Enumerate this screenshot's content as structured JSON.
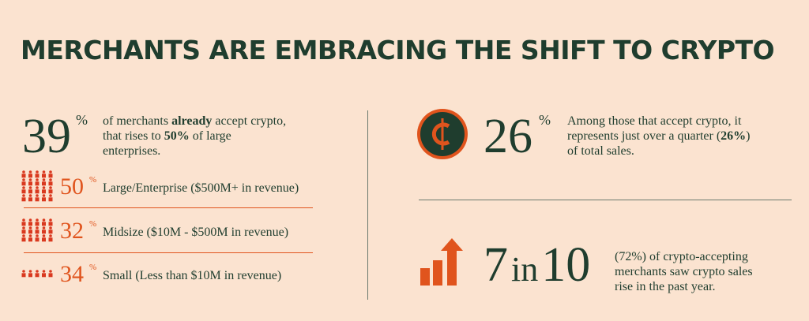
{
  "title": "MERCHANTS ARE EMBRACING THE SHIFT TO CRYPTO",
  "adoption": {
    "number": "39",
    "unit": "%",
    "text": [
      "of merchants ",
      "already",
      " accept crypto, that rises to ",
      "50%",
      " of large enterprises."
    ]
  },
  "segments": [
    {
      "number": "50",
      "unit": "%",
      "label": "Large/Enterprise ($500M+ in revenue)"
    },
    {
      "number": "32",
      "unit": "%",
      "label": "Midsize ($10M - $500M in revenue)"
    },
    {
      "number": "34",
      "unit": "%",
      "label": "Small (Less than $10M in revenue)"
    }
  ],
  "share": {
    "number": "26",
    "unit": "%",
    "text": [
      "Among those that accept crypto, it represents just over a quarter (",
      "26%",
      ") of total sales."
    ]
  },
  "growth": {
    "number": [
      "7",
      "in",
      "10"
    ],
    "text": "(72%) of crypto-accepting merchants saw crypto sales rise in the past year."
  }
}
